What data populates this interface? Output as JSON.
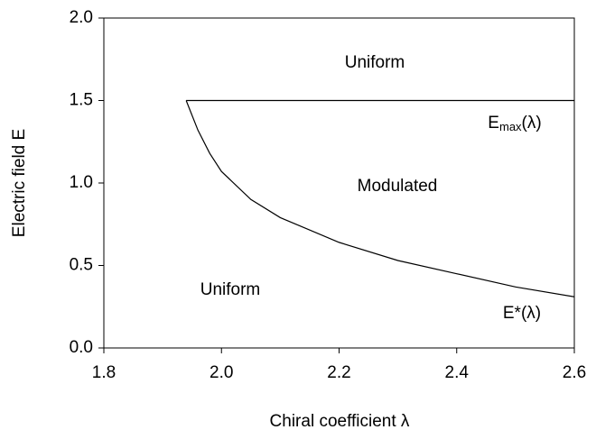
{
  "chart_data": {
    "type": "line",
    "xlabel": "Chiral coefficient λ",
    "ylabel": "Electric field E",
    "xlim": [
      1.8,
      2.6
    ],
    "ylim": [
      0,
      2
    ],
    "xticks": [
      1.8,
      {
        "value": 2,
        "label": "2.0"
      },
      2.2,
      2.4,
      2.6
    ],
    "yticks": [
      {
        "value": 0,
        "label": "0.0"
      },
      0.5,
      {
        "value": 1,
        "label": "1.0"
      },
      1.5,
      {
        "value": 2,
        "label": "2.0"
      }
    ],
    "series": [
      {
        "color": "#000000",
        "x": [
          1.94,
          2.6
        ],
        "values": [
          1.5,
          1.5
        ]
      },
      {
        "color": "#000000",
        "x": [
          1.94,
          1.96,
          1.98,
          2.0,
          2.05,
          2.1,
          2.2,
          2.3,
          2.4,
          2.5,
          2.6
        ],
        "values": [
          1.5,
          1.32,
          1.18,
          1.07,
          0.9,
          0.79,
          0.64,
          0.53,
          0.45,
          0.37,
          0.31
        ]
      }
    ],
    "annotations": [
      {
        "text": "Uniform"
      },
      {
        "text": "Modulated"
      },
      {
        "text": "Uniform"
      },
      {
        "text": "E",
        "sub": "max",
        "rest": "(λ)"
      },
      {
        "text": "E*(λ)"
      }
    ]
  }
}
